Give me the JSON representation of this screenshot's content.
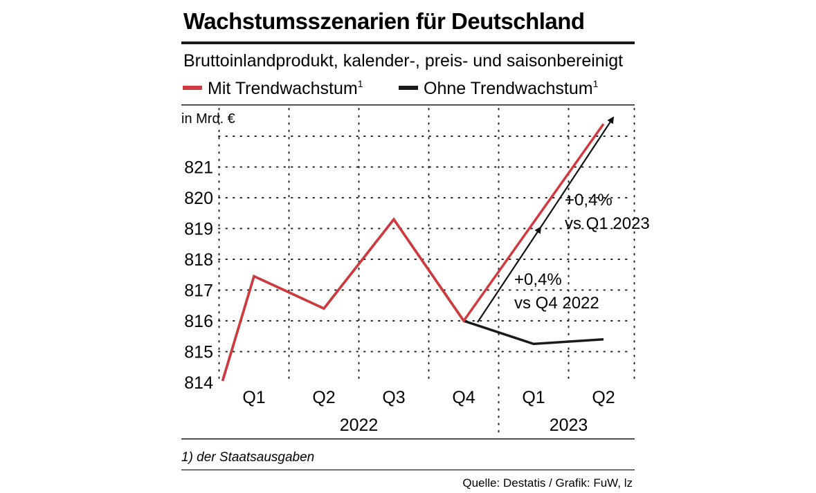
{
  "header": {
    "title": "Wachstumsszenarien für Deutschland",
    "subtitle": "Bruttoinlandprodukt, kalender-, preis- und saisonbereinigt"
  },
  "legend": {
    "items": [
      {
        "label": "Mit Trendwachstum",
        "sup": "1",
        "color": "#d2393f"
      },
      {
        "label": "Ohne Trendwachstum",
        "sup": "1",
        "color": "#1a1a1a"
      }
    ]
  },
  "annotations": {
    "a1_line1": "+0,4%",
    "a1_line2": "vs Q4 2022",
    "a2_line1": "+0,4%",
    "a2_line2": "vs Q1 2023"
  },
  "footer": {
    "footnote": "1) der Staatsausgaben",
    "source": "Quelle: Destatis / Grafik: FuW, lz"
  },
  "chart_data": {
    "type": "line",
    "title": "Wachstumsszenarien für Deutschland",
    "ylabel": "in Mrd. €",
    "ylim": [
      814,
      822.4
    ],
    "yticks": [
      814,
      815,
      816,
      817,
      818,
      819,
      820,
      821
    ],
    "categories": [
      "Q1",
      "Q2",
      "Q3",
      "Q4",
      "Q1",
      "Q2"
    ],
    "years": [
      {
        "label": "2022",
        "from": 0,
        "to": 3
      },
      {
        "label": "2023",
        "from": 4,
        "to": 5
      }
    ],
    "series": [
      {
        "name": "Mit Trendwachstum",
        "color": "#d2393f",
        "x": [
          -0.45,
          0,
          1,
          2,
          3,
          5
        ],
        "values": [
          814.05,
          817.45,
          816.4,
          819.3,
          816.0,
          822.4
        ]
      },
      {
        "name": "Ohne Trendwachstum",
        "color": "#1a1a1a",
        "x": [
          -0.45,
          0,
          1,
          2,
          3,
          4,
          5
        ],
        "values": [
          814.05,
          817.45,
          816.4,
          819.3,
          816.0,
          815.25,
          815.4
        ]
      }
    ]
  }
}
